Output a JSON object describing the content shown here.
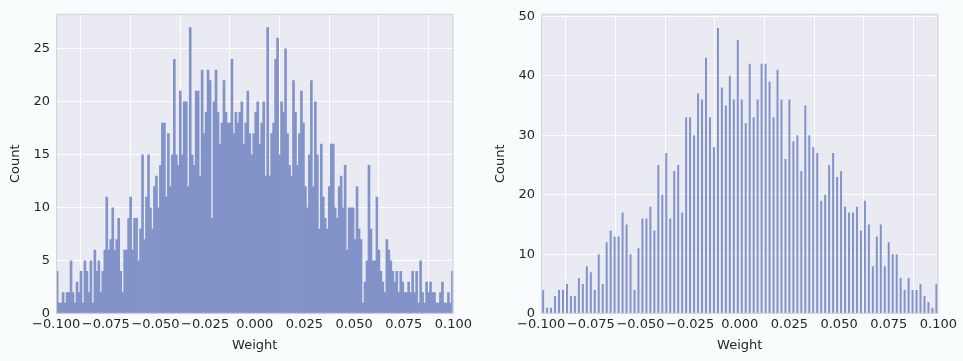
{
  "chart_data": [
    {
      "type": "histogram",
      "xlabel": "Weight",
      "ylabel": "Count",
      "color": "#8193c8",
      "grid": true,
      "xlim": [
        -0.1,
        0.1
      ],
      "ylim": [
        0,
        28.3
      ],
      "xticks": [
        {
          "value": -0.1,
          "label": "−0.100"
        },
        {
          "value": -0.075,
          "label": "−0.075"
        },
        {
          "value": -0.05,
          "label": "−0.050"
        },
        {
          "value": -0.025,
          "label": "−0.025"
        },
        {
          "value": 0,
          "label": "0.000"
        },
        {
          "value": 0.025,
          "label": "0.025"
        },
        {
          "value": 0.05,
          "label": "0.050"
        },
        {
          "value": 0.075,
          "label": "0.075"
        },
        {
          "value": 0.1,
          "label": "0.100"
        }
      ],
      "yticks": [
        0,
        5,
        10,
        15,
        20,
        25
      ],
      "bins": [
        -0.1,
        -0.099,
        -0.098,
        -0.097,
        -0.096,
        -0.095,
        -0.094,
        -0.093,
        -0.092,
        -0.091,
        -0.09,
        -0.089,
        -0.088,
        -0.087,
        -0.086,
        -0.085,
        -0.084,
        -0.083,
        -0.082,
        -0.081,
        -0.08,
        -0.079,
        -0.078,
        -0.077,
        -0.076,
        -0.075,
        -0.074,
        -0.073,
        -0.072,
        -0.071,
        -0.07,
        -0.069,
        -0.068,
        -0.067,
        -0.066,
        -0.065,
        -0.064,
        -0.063,
        -0.062,
        -0.061,
        -0.06,
        -0.059,
        -0.058,
        -0.057,
        -0.056,
        -0.055,
        -0.054,
        -0.053,
        -0.052,
        -0.051,
        -0.05,
        -0.049,
        -0.048,
        -0.047,
        -0.046,
        -0.045,
        -0.044,
        -0.043,
        -0.042,
        -0.041,
        -0.04,
        -0.039,
        -0.038,
        -0.037,
        -0.036,
        -0.035,
        -0.034,
        -0.033,
        -0.032,
        -0.031,
        -0.03,
        -0.029,
        -0.028,
        -0.027,
        -0.026,
        -0.025,
        -0.024,
        -0.023,
        -0.022,
        -0.021,
        -0.02,
        -0.019,
        -0.018,
        -0.017,
        -0.016,
        -0.015,
        -0.014,
        -0.013,
        -0.012,
        -0.011,
        -0.01,
        -0.009,
        -0.008,
        -0.007,
        -0.006,
        -0.005,
        -0.004,
        -0.003,
        -0.002,
        -0.001,
        0,
        0.001,
        0.002,
        0.003,
        0.004,
        0.005,
        0.006,
        0.007,
        0.008,
        0.009,
        0.01,
        0.011,
        0.012,
        0.013,
        0.014,
        0.015,
        0.016,
        0.017,
        0.018,
        0.019,
        0.02,
        0.021,
        0.022,
        0.023,
        0.024,
        0.025,
        0.026,
        0.027,
        0.028,
        0.029,
        0.03,
        0.031,
        0.032,
        0.033,
        0.034,
        0.035,
        0.036,
        0.037,
        0.038,
        0.039,
        0.04,
        0.041,
        0.042,
        0.043,
        0.044,
        0.045,
        0.046,
        0.047,
        0.048,
        0.049,
        0.05,
        0.051,
        0.052,
        0.053,
        0.054,
        0.055,
        0.056,
        0.057,
        0.058,
        0.059,
        0.06,
        0.061,
        0.062,
        0.063,
        0.064,
        0.065,
        0.066,
        0.067,
        0.068,
        0.069,
        0.07,
        0.071,
        0.072,
        0.073,
        0.074,
        0.075,
        0.076,
        0.077,
        0.078,
        0.079,
        0.08,
        0.081,
        0.082,
        0.083,
        0.084,
        0.085,
        0.086,
        0.087,
        0.088,
        0.089,
        0.09,
        0.091,
        0.092,
        0.093,
        0.094,
        0.095,
        0.096,
        0.097,
        0.098,
        0.099,
        0.1
      ],
      "values": [
        4,
        1,
        1,
        2,
        1,
        2,
        2,
        5,
        2,
        1,
        3,
        2,
        4,
        1,
        5,
        4,
        2,
        5,
        1,
        6,
        4,
        5,
        2,
        4,
        6,
        11,
        6,
        7,
        10,
        6,
        7,
        9,
        4,
        2,
        6,
        6,
        9,
        11,
        6,
        9,
        9,
        5,
        8,
        15,
        7,
        11,
        15,
        10,
        8,
        12,
        13,
        10,
        14,
        18,
        18,
        11,
        17,
        12,
        15,
        24,
        15,
        14,
        21,
        15,
        20,
        20,
        12,
        27,
        15,
        14,
        21,
        21,
        13,
        23,
        17,
        19,
        23,
        22,
        9,
        20,
        23,
        19,
        16,
        18,
        22,
        19,
        18,
        18,
        24,
        17,
        19,
        18,
        19,
        20,
        16,
        18,
        21,
        17,
        15,
        17,
        19,
        20,
        16,
        18,
        20,
        13,
        27,
        13,
        17,
        18,
        24,
        26,
        15,
        20,
        19,
        25,
        17,
        14,
        13,
        22,
        19,
        14,
        17,
        21,
        18,
        12,
        10,
        15,
        22,
        12,
        20,
        15,
        8,
        16,
        11,
        9,
        8,
        12,
        16,
        16,
        10,
        9,
        12,
        13,
        10,
        14,
        6,
        10,
        10,
        10,
        7,
        12,
        8,
        7,
        1,
        3,
        5,
        14,
        8,
        5,
        5,
        11,
        6,
        4,
        3,
        2,
        7,
        6,
        5,
        4,
        3,
        4,
        2,
        4,
        3,
        2,
        2,
        3,
        2,
        4,
        2,
        4,
        1,
        5,
        2,
        1,
        3,
        2,
        3,
        2,
        2,
        1,
        1,
        2,
        3,
        1,
        1,
        2,
        1,
        4
      ]
    },
    {
      "type": "histogram",
      "xlabel": "Weight",
      "ylabel": "Count",
      "color": "#8193c8",
      "grid": true,
      "xlim": [
        -0.1,
        0.1
      ],
      "ylim": [
        0,
        50.4
      ],
      "xticks": [
        {
          "value": -0.1,
          "label": "−0.100"
        },
        {
          "value": -0.075,
          "label": "−0.075"
        },
        {
          "value": -0.05,
          "label": "−0.050"
        },
        {
          "value": -0.025,
          "label": "−0.025"
        },
        {
          "value": 0,
          "label": "0.000"
        },
        {
          "value": 0.025,
          "label": "0.025"
        },
        {
          "value": 0.05,
          "label": "0.050"
        },
        {
          "value": 0.075,
          "label": "0.075"
        },
        {
          "value": 0.1,
          "label": "0.100"
        }
      ],
      "yticks": [
        0,
        10,
        20,
        30,
        40,
        50
      ],
      "bins": [
        -0.1,
        -0.098,
        -0.096,
        -0.094,
        -0.092,
        -0.09,
        -0.088,
        -0.086,
        -0.084,
        -0.082,
        -0.08,
        -0.078,
        -0.076,
        -0.074,
        -0.072,
        -0.07,
        -0.068,
        -0.066,
        -0.064,
        -0.062,
        -0.06,
        -0.058,
        -0.056,
        -0.054,
        -0.052,
        -0.05,
        -0.048,
        -0.046,
        -0.044,
        -0.042,
        -0.04,
        -0.038,
        -0.036,
        -0.034,
        -0.032,
        -0.03,
        -0.028,
        -0.026,
        -0.024,
        -0.022,
        -0.02,
        -0.018,
        -0.016,
        -0.014,
        -0.012,
        -0.01,
        -0.008,
        -0.006,
        -0.004,
        -0.002,
        0,
        0.002,
        0.004,
        0.006,
        0.008,
        0.01,
        0.012,
        0.014,
        0.016,
        0.018,
        0.02,
        0.022,
        0.024,
        0.026,
        0.028,
        0.03,
        0.032,
        0.034,
        0.036,
        0.038,
        0.04,
        0.042,
        0.044,
        0.046,
        0.048,
        0.05,
        0.052,
        0.054,
        0.056,
        0.058,
        0.06,
        0.062,
        0.064,
        0.066,
        0.068,
        0.07,
        0.072,
        0.074,
        0.076,
        0.078,
        0.08,
        0.082,
        0.084,
        0.086,
        0.088,
        0.09,
        0.092,
        0.094,
        0.096,
        0.098,
        0.1
      ],
      "values": [
        4,
        1,
        1,
        3,
        4,
        4,
        5,
        3,
        3,
        6,
        5,
        8,
        7,
        4,
        10,
        5,
        12,
        14,
        13,
        13,
        17,
        15,
        10,
        4,
        11,
        16,
        16,
        18,
        14,
        25,
        20,
        27,
        16,
        24,
        25,
        17,
        33,
        33,
        30,
        37,
        36,
        43,
        33,
        28,
        48,
        38,
        35,
        40,
        36,
        46,
        36,
        32,
        42,
        33,
        36,
        42,
        42,
        39,
        33,
        41,
        36,
        26,
        36,
        29,
        30,
        24,
        35,
        30,
        28,
        27,
        19,
        20,
        25,
        27,
        23,
        24,
        18,
        17,
        17,
        18,
        14,
        19,
        15,
        8,
        13,
        15,
        8,
        12,
        10,
        10,
        6,
        4,
        6,
        4,
        4,
        5,
        3,
        2,
        1,
        5
      ]
    }
  ]
}
